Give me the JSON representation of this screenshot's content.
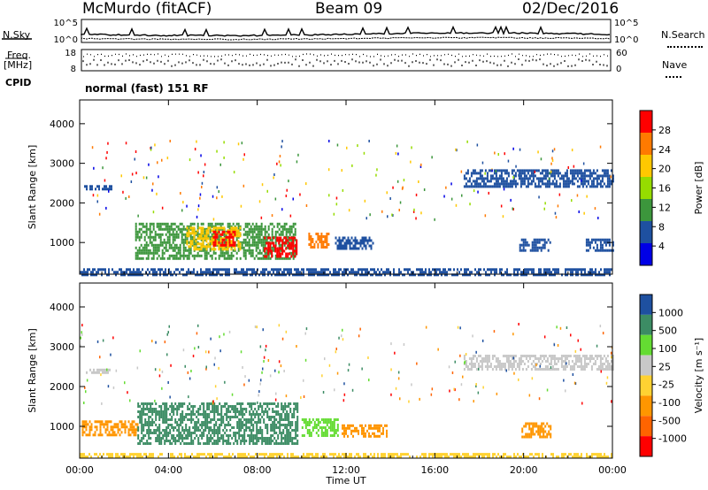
{
  "header": {
    "station": "McMurdo (fitACF)",
    "beam": "Beam 09",
    "date": "02/Dec/2016"
  },
  "strip": {
    "nsky_label": "N.Sky",
    "nsearch_label": "N.Search",
    "freq_label": "Freq.",
    "freq_unit": "[MHz]",
    "nave_label": "Nave",
    "cpid_label": "CPID",
    "cpid_value": "normal (fast) 151 RF",
    "noise_ticks": [
      "10^5",
      "10^0"
    ],
    "freq_ticks": [
      "18",
      "8"
    ],
    "nave_ticks": [
      "60",
      "0"
    ]
  },
  "chart_data": [
    {
      "type": "heatmap",
      "name": "power",
      "ylabel": "Slant Range [km]",
      "xlabel": "",
      "x_ticks": [
        "00:00",
        "04:00",
        "08:00",
        "12:00",
        "16:00",
        "20:00",
        "00:00"
      ],
      "y_ticks": [
        1000,
        2000,
        3000,
        4000
      ],
      "ylim": [
        200,
        4600
      ],
      "xlim_hours": [
        0,
        24
      ],
      "colorbar_label": "Power [dB]",
      "colorbar_ticks": [
        28,
        24,
        20,
        16,
        12,
        8,
        4
      ],
      "colorbar_colors": [
        "#ff0000",
        "#ff7a00",
        "#ffc800",
        "#96dc00",
        "#3c963c",
        "#1e50a0",
        "#0000e6"
      ],
      "regions": [
        {
          "t0": 0.0,
          "t1": 24.0,
          "r0": 200,
          "r1": 350,
          "color": "#1e50a0"
        },
        {
          "t0": 2.5,
          "t1": 9.7,
          "r0": 600,
          "r1": 1500,
          "color": "#3c963c"
        },
        {
          "t0": 4.8,
          "t1": 7.2,
          "r0": 800,
          "r1": 1400,
          "color": "#ffc800"
        },
        {
          "t0": 8.3,
          "t1": 9.8,
          "r0": 650,
          "r1": 1150,
          "color": "#ff0000"
        },
        {
          "t0": 6.0,
          "t1": 7.0,
          "r0": 900,
          "r1": 1300,
          "color": "#ff0000"
        },
        {
          "t0": 10.3,
          "t1": 11.2,
          "r0": 900,
          "r1": 1250,
          "color": "#ff7a00"
        },
        {
          "t0": 11.5,
          "t1": 13.2,
          "r0": 850,
          "r1": 1150,
          "color": "#1e50a0"
        },
        {
          "t0": 0.2,
          "t1": 1.4,
          "r0": 2350,
          "r1": 2450,
          "color": "#1e50a0"
        },
        {
          "t0": 17.3,
          "t1": 24.0,
          "r0": 2400,
          "r1": 2850,
          "color": "#1e50a0"
        },
        {
          "t0": 19.8,
          "t1": 21.2,
          "r0": 800,
          "r1": 1100,
          "color": "#1e50a0"
        },
        {
          "t0": 22.8,
          "t1": 24.0,
          "r0": 800,
          "r1": 1100,
          "color": "#1e50a0"
        }
      ]
    },
    {
      "type": "heatmap",
      "name": "velocity",
      "ylabel": "Slant Range [km]",
      "xlabel": "Time UT",
      "x_ticks": [
        "00:00",
        "04:00",
        "08:00",
        "12:00",
        "16:00",
        "20:00",
        "00:00"
      ],
      "y_ticks": [
        1000,
        2000,
        3000,
        4000
      ],
      "ylim": [
        200,
        4600
      ],
      "xlim_hours": [
        0,
        24
      ],
      "colorbar_label": "Velocity [m s⁻¹]",
      "colorbar_ticks": [
        1000,
        500,
        100,
        25,
        -25,
        -100,
        -500,
        -1000
      ],
      "colorbar_colors": [
        "#1e50a0",
        "#3c8c64",
        "#64dc32",
        "#c8c8c8",
        "#ffd232",
        "#ff9600",
        "#ff6400",
        "#ff0000"
      ],
      "regions": [
        {
          "t0": 0.0,
          "t1": 24.0,
          "r0": 200,
          "r1": 330,
          "color": "#ffd232"
        },
        {
          "t0": 0.1,
          "t1": 2.6,
          "r0": 750,
          "r1": 1150,
          "color": "#ff9600"
        },
        {
          "t0": 2.6,
          "t1": 9.8,
          "r0": 550,
          "r1": 1600,
          "color": "#3c8c64"
        },
        {
          "t0": 10.0,
          "t1": 11.6,
          "r0": 750,
          "r1": 1200,
          "color": "#64dc32"
        },
        {
          "t0": 11.8,
          "t1": 13.8,
          "r0": 750,
          "r1": 1050,
          "color": "#ff9600"
        },
        {
          "t0": 17.3,
          "t1": 24.0,
          "r0": 2400,
          "r1": 2800,
          "color": "#c8c8c8"
        },
        {
          "t0": 19.9,
          "t1": 21.2,
          "r0": 750,
          "r1": 1100,
          "color": "#ff9600"
        },
        {
          "t0": 0.2,
          "t1": 1.4,
          "r0": 2350,
          "r1": 2450,
          "color": "#c8c8c8"
        }
      ]
    }
  ]
}
